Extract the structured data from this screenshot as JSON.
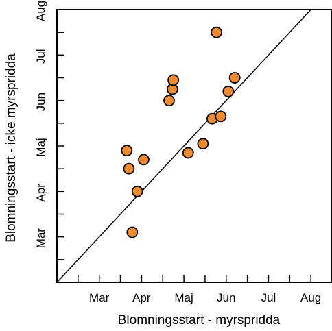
{
  "chart_data": {
    "type": "scatter",
    "title": "",
    "xlabel": "Blomningsstart - myrspridda",
    "ylabel": "Blomningsstart - icke myrspridda",
    "x_ticks": [
      {
        "label": "Mar",
        "value": 1
      },
      {
        "label": "Apr",
        "value": 2
      },
      {
        "label": "Maj",
        "value": 3
      },
      {
        "label": "Jun",
        "value": 4
      },
      {
        "label": "Jul",
        "value": 5
      },
      {
        "label": "Aug",
        "value": 6
      }
    ],
    "y_ticks": [
      {
        "label": "Mar",
        "value": 1
      },
      {
        "label": "Apr",
        "value": 2
      },
      {
        "label": "Maj",
        "value": 3
      },
      {
        "label": "Jun",
        "value": 4
      },
      {
        "label": "Jul",
        "value": 5
      },
      {
        "label": "Aug",
        "value": 6
      }
    ],
    "xlim": [
      0,
      6.5
    ],
    "ylim": [
      0,
      6.0
    ],
    "reference_line": "y = x",
    "grid": false,
    "marker_color": "#f08a2c",
    "marker_edge_color": "#000000",
    "points": [
      {
        "x": 1.78,
        "y": 1.1
      },
      {
        "x": 1.9,
        "y": 2.0
      },
      {
        "x": 2.05,
        "y": 2.7
      },
      {
        "x": 1.7,
        "y": 2.5
      },
      {
        "x": 1.65,
        "y": 2.9
      },
      {
        "x": 2.65,
        "y": 4.0
      },
      {
        "x": 2.73,
        "y": 4.25
      },
      {
        "x": 2.75,
        "y": 4.45
      },
      {
        "x": 3.1,
        "y": 2.85
      },
      {
        "x": 3.45,
        "y": 3.05
      },
      {
        "x": 3.67,
        "y": 3.6
      },
      {
        "x": 3.87,
        "y": 3.65
      },
      {
        "x": 4.05,
        "y": 4.2
      },
      {
        "x": 4.2,
        "y": 4.5
      },
      {
        "x": 3.77,
        "y": 5.5
      }
    ]
  }
}
